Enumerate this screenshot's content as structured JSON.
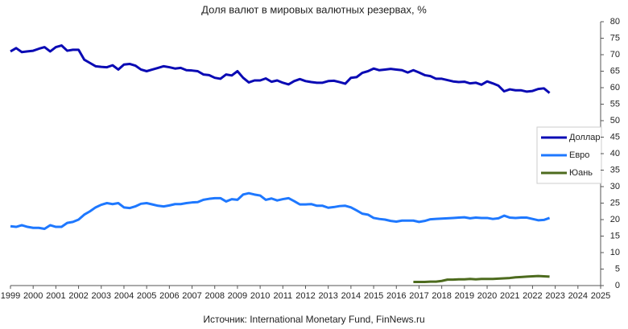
{
  "chart_data": {
    "type": "line",
    "title": "Доля валют в мировых валютных резервах, %",
    "source": "Источник: International Monetary Fund, FinNews.ru",
    "x": [
      1999,
      1999.25,
      1999.5,
      1999.75,
      2000,
      2000.25,
      2000.5,
      2000.75,
      2001,
      2001.25,
      2001.5,
      2001.75,
      2002,
      2002.25,
      2002.5,
      2002.75,
      2003,
      2003.25,
      2003.5,
      2003.75,
      2004,
      2004.25,
      2004.5,
      2004.75,
      2005,
      2005.25,
      2005.5,
      2005.75,
      2006,
      2006.25,
      2006.5,
      2006.75,
      2007,
      2007.25,
      2007.5,
      2007.75,
      2008,
      2008.25,
      2008.5,
      2008.75,
      2009,
      2009.25,
      2009.5,
      2009.75,
      2010,
      2010.25,
      2010.5,
      2010.75,
      2011,
      2011.25,
      2011.5,
      2011.75,
      2012,
      2012.25,
      2012.5,
      2012.75,
      2013,
      2013.25,
      2013.5,
      2013.75,
      2014,
      2014.25,
      2014.5,
      2014.75,
      2015,
      2015.25,
      2015.5,
      2015.75,
      2016,
      2016.25,
      2016.5,
      2016.75,
      2017,
      2017.25,
      2017.5,
      2017.75,
      2018,
      2018.25,
      2018.5,
      2018.75,
      2019,
      2019.25,
      2019.5,
      2019.75,
      2020,
      2020.25,
      2020.5,
      2020.75,
      2021,
      2021.25,
      2021.5,
      2021.75,
      2022,
      2022.25,
      2022.5,
      2022.75
    ],
    "series": [
      {
        "name": "Доллар",
        "color": "#0a0ab4",
        "values": [
          71,
          72,
          70.8,
          71,
          71.2,
          71.8,
          72.3,
          71,
          72.3,
          72.8,
          71.2,
          71.5,
          71.5,
          68.5,
          67.5,
          66.5,
          66.3,
          66.2,
          66.8,
          65.5,
          67,
          67.2,
          66.7,
          65.5,
          65,
          65.5,
          66,
          66.5,
          66.2,
          65.8,
          66,
          65.3,
          65.2,
          65,
          64,
          63.8,
          63,
          62.7,
          64,
          63.7,
          65,
          63,
          61.6,
          62.2,
          62.2,
          62.8,
          61.8,
          62.2,
          61.5,
          61,
          62,
          62.6,
          62,
          61.7,
          61.5,
          61.5,
          62,
          62.1,
          61.7,
          61.2,
          63,
          63.2,
          64.5,
          65,
          65.8,
          65.3,
          65.5,
          65.7,
          65.5,
          65.3,
          64.6,
          65.3,
          64.6,
          63.8,
          63.5,
          62.7,
          62.7,
          62.3,
          61.9,
          61.7,
          61.8,
          61.3,
          61.5,
          60.9,
          61.9,
          61.3,
          60.6,
          58.9,
          59.5,
          59.2,
          59.2,
          58.8,
          59,
          59.6,
          59.8,
          58.4
        ]
      },
      {
        "name": "Евро",
        "color": "#1e78ff",
        "values": [
          18,
          17.8,
          18.3,
          17.8,
          17.5,
          17.5,
          17.2,
          18.3,
          17.8,
          17.8,
          19,
          19.3,
          20,
          21.5,
          22.5,
          23.7,
          24.5,
          25,
          24.7,
          25,
          23.7,
          23.5,
          24,
          24.8,
          25,
          24.6,
          24.2,
          24,
          24.3,
          24.7,
          24.7,
          25,
          25.2,
          25.3,
          26,
          26.3,
          26.5,
          26.5,
          25.5,
          26.2,
          26,
          27.6,
          28,
          27.6,
          27.3,
          26,
          26.4,
          25.8,
          26.2,
          26.5,
          25.6,
          24.6,
          24.6,
          24.7,
          24.2,
          24.2,
          23.6,
          23.8,
          24.1,
          24.2,
          23.7,
          22.8,
          21.8,
          21.5,
          20.5,
          20.2,
          20,
          19.6,
          19.4,
          19.7,
          19.7,
          19.7,
          19.3,
          19.6,
          20.1,
          20.2,
          20.3,
          20.4,
          20.5,
          20.6,
          20.7,
          20.4,
          20.6,
          20.5,
          20.5,
          20.2,
          20.4,
          21.2,
          20.6,
          20.5,
          20.6,
          20.6,
          20.2,
          19.8,
          19.9,
          20.5
        ]
      },
      {
        "name": "Юань",
        "color": "#4d6b1e",
        "values": [
          null,
          null,
          null,
          null,
          null,
          null,
          null,
          null,
          null,
          null,
          null,
          null,
          null,
          null,
          null,
          null,
          null,
          null,
          null,
          null,
          null,
          null,
          null,
          null,
          null,
          null,
          null,
          null,
          null,
          null,
          null,
          null,
          null,
          null,
          null,
          null,
          null,
          null,
          null,
          null,
          null,
          null,
          null,
          null,
          null,
          null,
          null,
          null,
          null,
          null,
          null,
          null,
          null,
          null,
          null,
          null,
          null,
          null,
          null,
          null,
          null,
          null,
          null,
          null,
          null,
          null,
          null,
          null,
          null,
          null,
          null,
          1.1,
          1.1,
          1.1,
          1.2,
          1.2,
          1.4,
          1.8,
          1.8,
          1.9,
          1.9,
          2.0,
          1.9,
          2.0,
          2.0,
          2.0,
          2.1,
          2.2,
          2.3,
          2.5,
          2.6,
          2.7,
          2.8,
          2.9,
          2.8,
          2.7
        ]
      }
    ],
    "xlim": [
      1999,
      2025
    ],
    "xticks": [
      1999,
      2000,
      2001,
      2002,
      2003,
      2004,
      2005,
      2006,
      2007,
      2008,
      2009,
      2010,
      2011,
      2012,
      2013,
      2014,
      2015,
      2016,
      2017,
      2018,
      2019,
      2020,
      2021,
      2022,
      2023,
      2024,
      2025
    ],
    "ylim": [
      0,
      80
    ],
    "yticks": [
      0,
      5,
      10,
      15,
      20,
      25,
      30,
      35,
      40,
      45,
      50,
      55,
      60,
      65,
      70,
      75,
      80
    ],
    "legend": "right"
  }
}
